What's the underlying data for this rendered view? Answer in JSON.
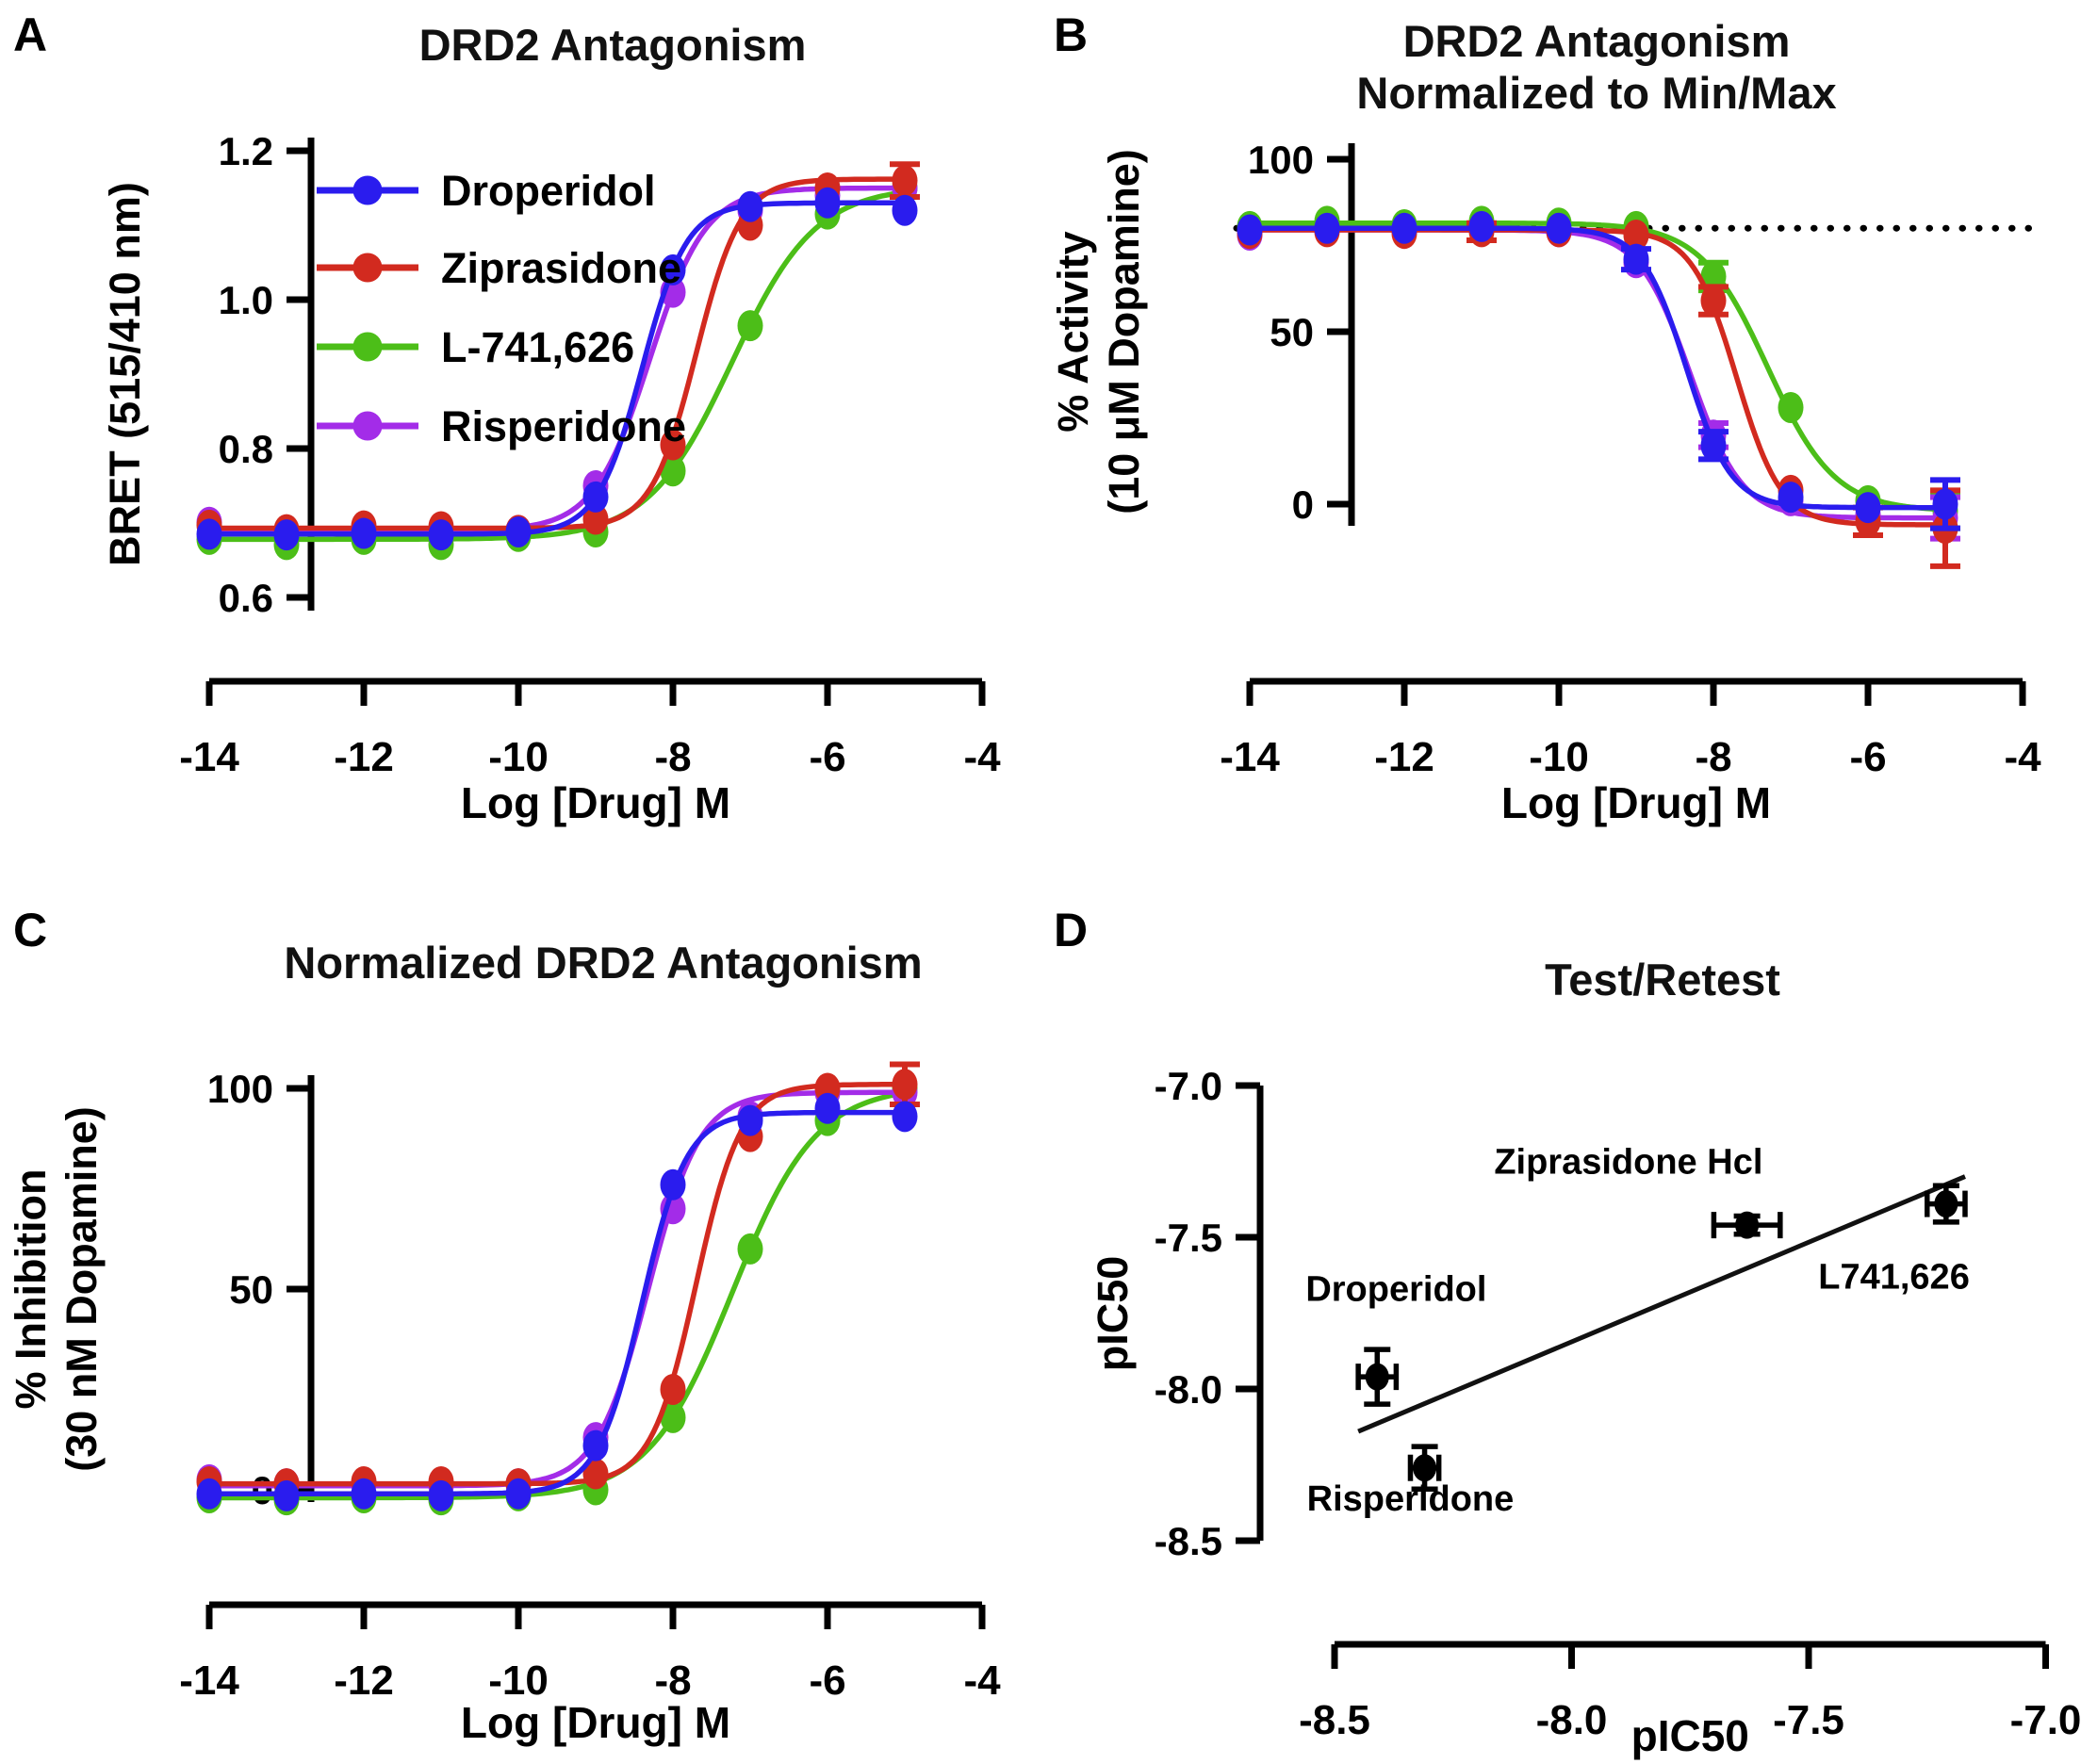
{
  "page": {
    "background": "#ffffff"
  },
  "colors": {
    "droperidol": "#2a1cee",
    "ziprasidone": "#d22a1f",
    "l741626": "#4cbe18",
    "risperidone": "#a32ce8",
    "axis": "#000000",
    "fit_line": "#111111"
  },
  "panels": [
    {
      "label": "A",
      "title_lines": [
        "DRD2 Antagonism"
      ],
      "x_axis": {
        "title": "Log [Drug] M",
        "ticks": [
          {
            "v": -14,
            "label": "-14"
          },
          {
            "v": -12,
            "label": "-12"
          },
          {
            "v": -10,
            "label": "-10"
          },
          {
            "v": -8,
            "label": "-8"
          },
          {
            "v": -6,
            "label": "-6"
          },
          {
            "v": -4,
            "label": "-4"
          }
        ]
      },
      "y_axis": {
        "title_lines": [
          "BRET (515/410 nm)"
        ],
        "ticks": [
          {
            "v": 1.2,
            "label": "1.2"
          },
          {
            "v": 1.0,
            "label": "1.0"
          },
          {
            "v": 0.8,
            "label": "0.8"
          },
          {
            "v": 0.6,
            "label": "0.6"
          }
        ]
      },
      "legend": [
        "Droperidol",
        "Ziprasidone",
        "L-741,626",
        "Risperidone"
      ]
    },
    {
      "label": "B",
      "title_lines": [
        "DRD2 Antagonism",
        "Normalized to Min/Max"
      ],
      "x_axis": {
        "title": "Log [Drug] M",
        "ticks": [
          {
            "v": -14,
            "label": "-14"
          },
          {
            "v": -12,
            "label": "-12"
          },
          {
            "v": -10,
            "label": "-10"
          },
          {
            "v": -8,
            "label": "-8"
          },
          {
            "v": -6,
            "label": "-6"
          },
          {
            "v": -4,
            "label": "-4"
          }
        ]
      },
      "y_axis": {
        "title_lines": [
          "% Activity",
          "(10 μM Dopamine)"
        ],
        "ticks": [
          {
            "v": 100,
            "label": "100"
          },
          {
            "v": 50,
            "label": "50"
          },
          {
            "v": 0,
            "label": "0"
          }
        ]
      }
    },
    {
      "label": "C",
      "title_lines": [
        "Normalized DRD2 Antagonism"
      ],
      "x_axis": {
        "title": "Log [Drug] M",
        "ticks": [
          {
            "v": -14,
            "label": "-14"
          },
          {
            "v": -12,
            "label": "-12"
          },
          {
            "v": -10,
            "label": "-10"
          },
          {
            "v": -8,
            "label": "-8"
          },
          {
            "v": -6,
            "label": "-6"
          },
          {
            "v": -4,
            "label": "-4"
          }
        ]
      },
      "y_axis": {
        "title_lines": [
          "% Inhibition",
          "(30 nM Dopamine)"
        ],
        "ticks": [
          {
            "v": 100,
            "label": "100"
          },
          {
            "v": 50,
            "label": "50"
          },
          {
            "v": 0,
            "label": "0"
          }
        ]
      }
    },
    {
      "label": "D",
      "title_lines": [
        "Test/Retest"
      ],
      "x_axis": {
        "title": "pIC50",
        "ticks": [
          {
            "v": -8.5,
            "label": "-8.5"
          },
          {
            "v": -8.0,
            "label": "-8.0"
          },
          {
            "v": -7.5,
            "label": "-7.5"
          },
          {
            "v": -7.0,
            "label": "-7.0"
          }
        ]
      },
      "y_axis": {
        "title_lines": [
          "pIC50"
        ],
        "ticks": [
          {
            "v": -7.0,
            "label": "-7.0"
          },
          {
            "v": -7.5,
            "label": "-7.5"
          },
          {
            "v": -8.0,
            "label": "-8.0"
          },
          {
            "v": -8.5,
            "label": "-8.5"
          }
        ]
      }
    }
  ],
  "chart_data": [
    {
      "type": "line",
      "panel": "A",
      "title": "DRD2 Antagonism",
      "xlabel": "Log [Drug] M",
      "ylabel": "BRET (515/410 nm)",
      "xlim": [
        -14,
        -4
      ],
      "ylim": [
        0.6,
        1.25
      ],
      "grid": false,
      "legend_position": "upper-left-inside",
      "x": [
        -14,
        -13,
        -12,
        -11,
        -10,
        -9,
        -8,
        -7,
        -6,
        -5
      ],
      "series": [
        {
          "name": "Droperidol",
          "color_key": "droperidol",
          "z": 4,
          "y": [
            0.685,
            0.684,
            0.686,
            0.684,
            0.688,
            0.735,
            1.04,
            1.125,
            1.13,
            1.12
          ],
          "yerr": [
            null,
            null,
            null,
            null,
            null,
            null,
            null,
            null,
            null,
            null
          ],
          "fit": {
            "direction": "up",
            "bottom": 0.685,
            "top": 1.13,
            "logec50": -8.4,
            "hill": 1.5
          }
        },
        {
          "name": "Ziprasidone",
          "color_key": "ziprasidone",
          "z": 3,
          "y": [
            0.697,
            0.691,
            0.696,
            0.695,
            0.69,
            0.705,
            0.805,
            1.1,
            1.15,
            1.16
          ],
          "yerr": [
            null,
            null,
            null,
            null,
            null,
            null,
            null,
            null,
            null,
            0.022
          ],
          "fit": {
            "direction": "up",
            "bottom": 0.693,
            "top": 1.162,
            "logec50": -7.7,
            "hill": 1.5
          }
        },
        {
          "name": "L-741,626",
          "color_key": "l741626",
          "z": 1,
          "y": [
            0.678,
            0.671,
            0.678,
            0.671,
            0.682,
            0.688,
            0.77,
            0.965,
            1.115,
            1.15
          ],
          "yerr": [
            null,
            null,
            null,
            null,
            null,
            null,
            null,
            null,
            null,
            null
          ],
          "fit": {
            "direction": "up",
            "bottom": 0.678,
            "top": 1.152,
            "logec50": -7.24,
            "hill": 0.8
          }
        },
        {
          "name": "Risperidone",
          "color_key": "risperidone",
          "z": 2,
          "y": [
            0.701,
            0.688,
            0.69,
            0.686,
            0.69,
            0.75,
            1.01,
            1.12,
            1.14,
            1.15
          ],
          "yerr": [
            null,
            null,
            null,
            null,
            null,
            null,
            null,
            null,
            null,
            null
          ],
          "fit": {
            "direction": "up",
            "bottom": 0.69,
            "top": 1.15,
            "logec50": -8.3,
            "hill": 1.2
          }
        }
      ]
    },
    {
      "type": "line",
      "panel": "B",
      "title": "DRD2 Antagonism Normalized to Min/Max",
      "xlabel": "Log [Drug] M",
      "ylabel": "% Activity (10 μM Dopamine)",
      "xlim": [
        -14,
        -4
      ],
      "ylim": [
        -20,
        100
      ],
      "grid": false,
      "reference_line": {
        "y": 80,
        "style": "dotted"
      },
      "x": [
        -14,
        -13,
        -12,
        -11,
        -10,
        -9,
        -8,
        -7,
        -6,
        -5
      ],
      "series": [
        {
          "name": "Droperidol",
          "color_key": "droperidol",
          "z": 4,
          "y": [
            79.5,
            80,
            80,
            80.5,
            80,
            71,
            17,
            2,
            -1,
            0
          ],
          "yerr": [
            null,
            null,
            null,
            null,
            null,
            3,
            4,
            null,
            null,
            7
          ],
          "fit": {
            "direction": "down",
            "bottom": -1,
            "top": 80,
            "logec50": -8.35,
            "hill": 1.5
          }
        },
        {
          "name": "Ziprasidone",
          "color_key": "ziprasidone",
          "z": 3,
          "y": [
            78.5,
            79,
            78.5,
            79,
            79,
            78,
            59,
            4,
            -5,
            -7
          ],
          "yerr": [
            null,
            null,
            null,
            2.5,
            null,
            null,
            4,
            null,
            4,
            11
          ],
          "fit": {
            "direction": "down",
            "bottom": -6,
            "top": 79.5,
            "logec50": -7.7,
            "hill": 1.5
          }
        },
        {
          "name": "L-741,626",
          "color_key": "l741626",
          "z": 1,
          "y": [
            80.5,
            82,
            81,
            82,
            81.5,
            80.5,
            66,
            28,
            1,
            -2
          ],
          "yerr": [
            null,
            null,
            null,
            null,
            null,
            null,
            4,
            null,
            null,
            5
          ],
          "fit": {
            "direction": "down",
            "bottom": -2,
            "top": 81.5,
            "logec50": -7.3,
            "hill": 1.0
          }
        },
        {
          "name": "Risperidone",
          "color_key": "risperidone",
          "z": 2,
          "y": [
            78,
            79.5,
            79.5,
            79.5,
            79,
            70,
            20,
            1,
            -3,
            -4
          ],
          "yerr": [
            null,
            null,
            null,
            null,
            null,
            null,
            3.5,
            null,
            null,
            6
          ],
          "fit": {
            "direction": "down",
            "bottom": -4,
            "top": 79.5,
            "logec50": -8.3,
            "hill": 1.3
          }
        }
      ]
    },
    {
      "type": "line",
      "panel": "C",
      "title": "Normalized DRD2 Antagonism",
      "xlabel": "Log [Drug] M",
      "ylabel": "% Inhibition (30 nM Dopamine)",
      "xlim": [
        -14,
        -4
      ],
      "ylim": [
        -10,
        110
      ],
      "grid": false,
      "x": [
        -14,
        -13,
        -12,
        -11,
        -10,
        -9,
        -8,
        -7,
        -6,
        -5
      ],
      "series": [
        {
          "name": "Droperidol",
          "color_key": "droperidol",
          "z": 4,
          "y": [
            -1,
            -1.5,
            -1,
            -1.5,
            -1,
            11,
            76,
            92,
            95,
            93
          ],
          "yerr": [
            null,
            null,
            null,
            null,
            null,
            null,
            null,
            null,
            null,
            null
          ],
          "fit": {
            "direction": "up",
            "bottom": -1,
            "top": 94,
            "logec50": -8.4,
            "hill": 1.5
          }
        },
        {
          "name": "Ziprasidone",
          "color_key": "ziprasidone",
          "z": 3,
          "y": [
            2,
            1.5,
            2,
            2,
            1.5,
            4,
            25,
            88,
            100,
            101
          ],
          "yerr": [
            null,
            null,
            null,
            null,
            null,
            null,
            null,
            null,
            null,
            5
          ],
          "fit": {
            "direction": "up",
            "bottom": 1.5,
            "top": 101,
            "logec50": -7.7,
            "hill": 1.5
          }
        },
        {
          "name": "L-741,626",
          "color_key": "l741626",
          "z": 1,
          "y": [
            -2,
            -2.5,
            -2,
            -2.5,
            -1.5,
            0,
            18,
            60,
            92,
            100
          ],
          "yerr": [
            null,
            null,
            null,
            null,
            null,
            null,
            null,
            null,
            null,
            null
          ],
          "fit": {
            "direction": "up",
            "bottom": -2,
            "top": 100.5,
            "logec50": -7.23,
            "hill": 0.8
          }
        },
        {
          "name": "Risperidone",
          "color_key": "risperidone",
          "z": 2,
          "y": [
            2.5,
            1.5,
            1.5,
            1,
            1.5,
            13,
            70,
            93,
            99,
            99
          ],
          "yerr": [
            null,
            null,
            null,
            null,
            null,
            null,
            null,
            null,
            null,
            null
          ],
          "fit": {
            "direction": "up",
            "bottom": 1,
            "top": 99,
            "logec50": -8.32,
            "hill": 1.3
          }
        }
      ]
    },
    {
      "type": "scatter",
      "panel": "D",
      "title": "Test/Retest",
      "xlabel": "pIC50",
      "ylabel": "pIC50",
      "xlim": [
        -8.5,
        -7.0
      ],
      "ylim": [
        -8.5,
        -7.0
      ],
      "grid": false,
      "marker_color": "#000000",
      "points": [
        {
          "name": "Droperidol",
          "x": -8.41,
          "y": -7.96,
          "xerr": 0.04,
          "yerr": 0.09
        },
        {
          "name": "Risperidone",
          "x": -8.31,
          "y": -8.26,
          "xerr": 0.03,
          "yerr": 0.07
        },
        {
          "name": "Ziprasidone Hcl",
          "x": -7.63,
          "y": -7.46,
          "xerr": 0.07,
          "yerr": 0.03
        },
        {
          "name": "L741,626",
          "x": -7.21,
          "y": -7.39,
          "xerr": 0.04,
          "yerr": 0.06
        }
      ],
      "fit_line": {
        "x1": -8.45,
        "y1": -8.14,
        "x2": -7.17,
        "y2": -7.3
      },
      "annotations": [
        {
          "text": "Droperidol",
          "x": -8.37,
          "y": -7.71
        },
        {
          "text": "Risperidone",
          "x": -8.34,
          "y": -8.4
        },
        {
          "text": "Ziprasidone Hcl",
          "x": -7.88,
          "y": -7.29
        },
        {
          "text": "L741,626",
          "x": -7.32,
          "y": -7.67
        }
      ]
    }
  ]
}
